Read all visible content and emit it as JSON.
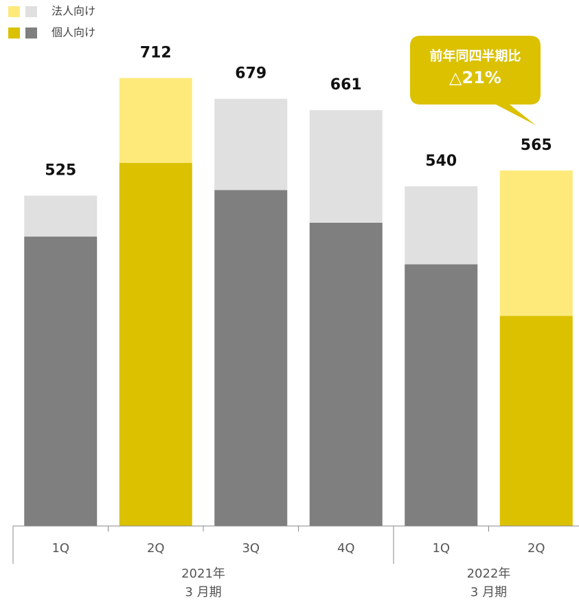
{
  "chart_data": {
    "type": "stacked-bar",
    "categories": [
      "1Q",
      "2Q",
      "3Q",
      "4Q",
      "1Q",
      "2Q"
    ],
    "groups": [
      {
        "label": [
          "2021年",
          "3 月期"
        ],
        "count": 4
      },
      {
        "label": [
          "2022年",
          "3 月期"
        ],
        "count": 2
      }
    ],
    "series": [
      {
        "name": "個人向け",
        "colors": [
          "#7f7f7f",
          "#dbc100",
          "#7f7f7f",
          "#7f7f7f",
          "#7f7f7f",
          "#dbc100"
        ],
        "values": [
          460,
          577,
          534,
          482,
          416,
          334
        ]
      },
      {
        "name": "法人向け",
        "colors": [
          "#e0e0e0",
          "#fdea7b",
          "#e0e0e0",
          "#e0e0e0",
          "#e0e0e0",
          "#fdea7b"
        ],
        "values": [
          65,
          135,
          145,
          179,
          124,
          231
        ]
      }
    ],
    "totals": [
      525,
      712,
      679,
      661,
      540,
      565
    ],
    "annotation": [
      "前年同四半期比",
      "△21%"
    ],
    "ylim": [
      0,
      836
    ]
  }
}
